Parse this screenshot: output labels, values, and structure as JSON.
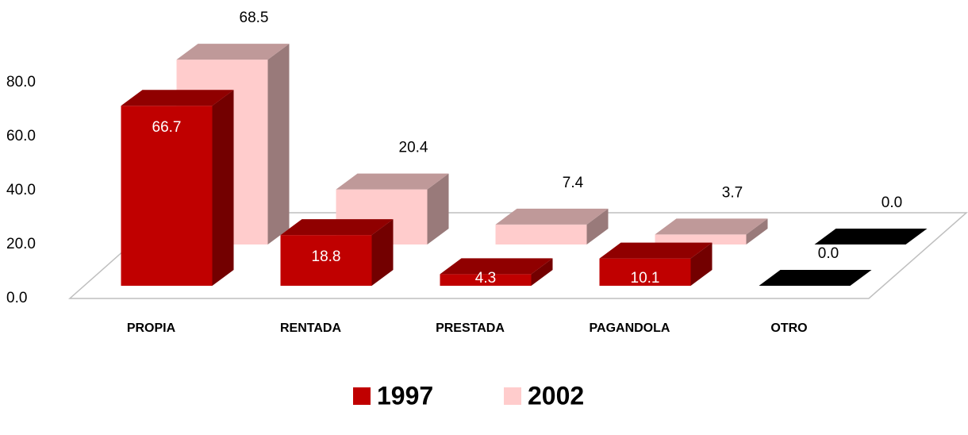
{
  "chart_data": {
    "type": "bar3d",
    "categories": [
      "PROPIA",
      "RENTADA",
      "PRESTADA",
      "PAGANDOLA",
      "OTRO"
    ],
    "series": [
      {
        "name": "1997",
        "color": "#c00000",
        "values": [
          66.7,
          18.8,
          4.3,
          10.1,
          0.0
        ],
        "value_labels": [
          "66.7",
          "18.8",
          "4.3",
          "10.1",
          "0.0"
        ]
      },
      {
        "name": "2002",
        "color": "#ffcccc",
        "values": [
          68.5,
          20.4,
          7.4,
          3.7,
          0.0
        ],
        "value_labels": [
          "68.5",
          "20.4",
          "7.4",
          "3.7",
          "0.0"
        ]
      }
    ],
    "ylim": [
      0,
      80
    ],
    "yticks": [
      {
        "value": 0,
        "label": "0.0"
      },
      {
        "value": 20,
        "label": "20.0"
      },
      {
        "value": 40,
        "label": "40.0"
      },
      {
        "value": 60,
        "label": "60.0"
      },
      {
        "value": 80,
        "label": "80.0"
      }
    ],
    "legend": "bottom"
  }
}
